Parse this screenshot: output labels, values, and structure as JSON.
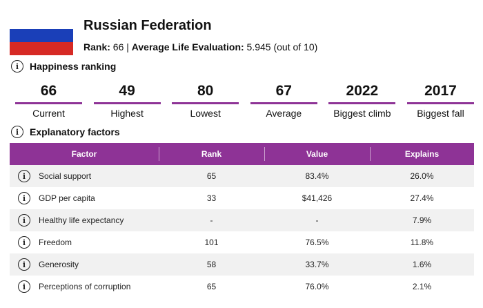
{
  "header": {
    "country": "Russian Federation",
    "rank_label": "Rank:",
    "rank_value": "66",
    "separator": "|",
    "ale_label": "Average Life Evaluation:",
    "ale_value": "5.945 (out of 10)",
    "flag_icon": "russia-flag-icon",
    "flag_colors": [
      "#ffffff",
      "#1a3fb8",
      "#d62a25"
    ]
  },
  "happiness": {
    "title": "Happiness ranking",
    "icon": "info-icon",
    "stats": [
      {
        "value": "66",
        "label": "Current"
      },
      {
        "value": "49",
        "label": "Highest"
      },
      {
        "value": "80",
        "label": "Lowest"
      },
      {
        "value": "67",
        "label": "Average"
      },
      {
        "value": "2022",
        "label": "Biggest climb"
      },
      {
        "value": "2017",
        "label": "Biggest fall"
      }
    ]
  },
  "factors": {
    "title": "Explanatory factors",
    "icon": "info-icon",
    "columns": [
      "Factor",
      "Rank",
      "Value",
      "Explains"
    ],
    "rows": [
      {
        "factor": "Social support",
        "rank": "65",
        "value": "83.4%",
        "explains": "26.0%"
      },
      {
        "factor": "GDP per capita",
        "rank": "33",
        "value": "$41,426",
        "explains": "27.4%"
      },
      {
        "factor": "Healthy life expectancy",
        "rank": "-",
        "value": "-",
        "explains": "7.9%"
      },
      {
        "factor": "Freedom",
        "rank": "101",
        "value": "76.5%",
        "explains": "11.8%"
      },
      {
        "factor": "Generosity",
        "rank": "58",
        "value": "33.7%",
        "explains": "1.6%"
      },
      {
        "factor": "Perceptions of corruption",
        "rank": "65",
        "value": "76.0%",
        "explains": "2.1%"
      }
    ]
  },
  "colors": {
    "accent": "#8e3396",
    "row_stripe": "#f1f1f1"
  }
}
